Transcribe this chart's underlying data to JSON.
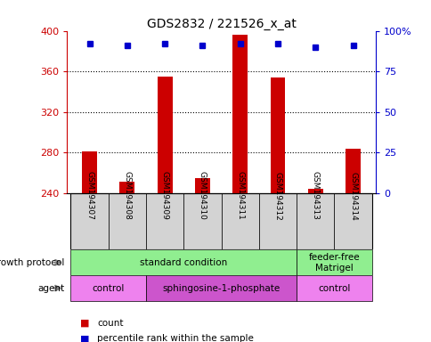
{
  "title": "GDS2832 / 221526_x_at",
  "samples": [
    "GSM194307",
    "GSM194308",
    "GSM194309",
    "GSM194310",
    "GSM194311",
    "GSM194312",
    "GSM194313",
    "GSM194314"
  ],
  "counts": [
    281,
    251,
    355,
    255,
    396,
    354,
    244,
    284
  ],
  "percentile_ranks": [
    92,
    91,
    92,
    91,
    92,
    92,
    90,
    91
  ],
  "ylim_left": [
    240,
    400
  ],
  "ylim_right": [
    0,
    100
  ],
  "yticks_left": [
    240,
    280,
    320,
    360,
    400
  ],
  "yticks_right": [
    0,
    25,
    50,
    75,
    100
  ],
  "right_tick_labels": [
    "0",
    "25",
    "50",
    "75",
    "100%"
  ],
  "bar_color": "#cc0000",
  "dot_color": "#0000cc",
  "bar_baseline": 240,
  "bar_width": 0.4,
  "growth_protocol_groups": [
    {
      "label": "standard condition",
      "start": 0,
      "end": 6,
      "color": "#90ee90"
    },
    {
      "label": "feeder-free\nMatrigel",
      "start": 6,
      "end": 8,
      "color": "#90ee90"
    }
  ],
  "agent_groups": [
    {
      "label": "control",
      "start": 0,
      "end": 2,
      "color": "#ee82ee"
    },
    {
      "label": "sphingosine-1-phosphate",
      "start": 2,
      "end": 6,
      "color": "#cc55cc"
    },
    {
      "label": "control",
      "start": 6,
      "end": 8,
      "color": "#ee82ee"
    }
  ],
  "sample_box_color": "#d3d3d3",
  "legend_count_color": "#cc0000",
  "legend_dot_color": "#0000cc",
  "axis_color_left": "#cc0000",
  "axis_color_right": "#0000cc",
  "background_color": "#ffffff",
  "grid_color": "#000000",
  "title_fontsize": 10,
  "tick_fontsize": 8,
  "label_fontsize": 8,
  "sample_fontsize": 6.5,
  "annot_fontsize": 7.5,
  "legend_fontsize": 7.5,
  "grid_ticks": [
    280,
    320,
    360
  ]
}
